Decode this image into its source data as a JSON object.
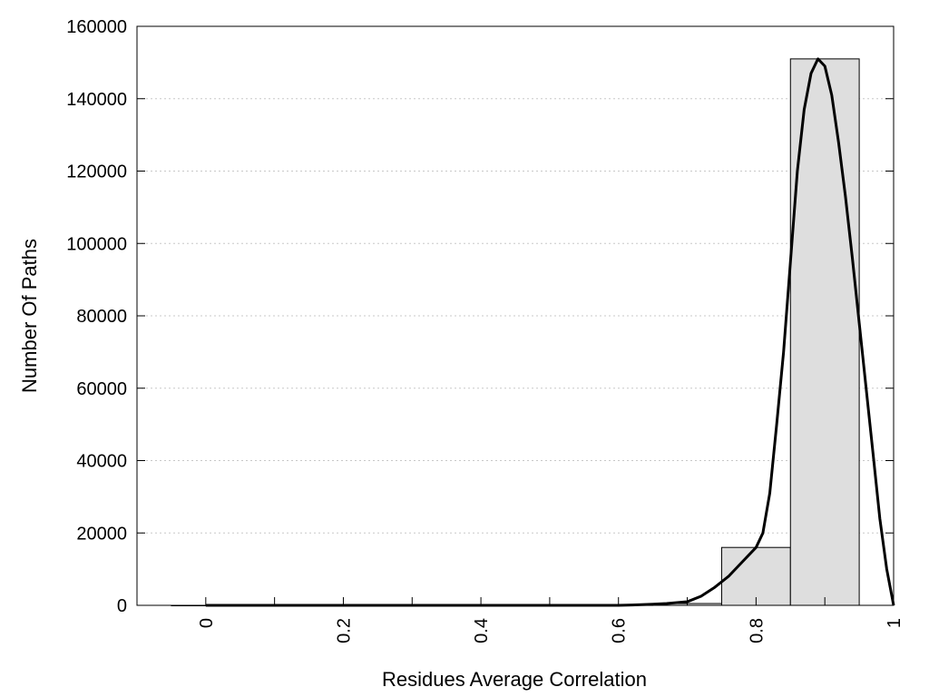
{
  "chart_data": {
    "type": "bar",
    "title": "",
    "xlabel": "Residues Average Correlation",
    "ylabel": "Number Of Paths",
    "xlim": [
      -0.1,
      1.0
    ],
    "ylim": [
      0,
      160000
    ],
    "x_ticks": [
      "0",
      "0.2",
      "0.4",
      "0.6",
      "0.8",
      "1"
    ],
    "x_tick_values": [
      0,
      0.2,
      0.4,
      0.6,
      0.8,
      1.0
    ],
    "x_minor_ticks": [
      0.1,
      0.3,
      0.5,
      0.7,
      0.9
    ],
    "y_ticks": [
      "0",
      "20000",
      "40000",
      "60000",
      "80000",
      "100000",
      "120000",
      "140000",
      "160000"
    ],
    "y_tick_values": [
      0,
      20000,
      40000,
      60000,
      80000,
      100000,
      120000,
      140000,
      160000
    ],
    "bin_width": 0.1,
    "bin_centers": [
      0,
      0.1,
      0.2,
      0.3,
      0.4,
      0.5,
      0.6,
      0.7,
      0.8,
      0.9
    ],
    "values": [
      0,
      0,
      0,
      0,
      0,
      0,
      100,
      500,
      16000,
      151000
    ],
    "fit_curve": {
      "x": [
        0.0,
        0.6,
        0.62,
        0.65,
        0.67,
        0.7,
        0.72,
        0.74,
        0.76,
        0.78,
        0.8,
        0.81,
        0.82,
        0.83,
        0.84,
        0.85,
        0.86,
        0.87,
        0.88,
        0.89,
        0.9,
        0.91,
        0.92,
        0.93,
        0.94,
        0.95,
        0.96,
        0.97,
        0.98,
        0.99,
        1.0
      ],
      "y": [
        0,
        0,
        100,
        300,
        500,
        1000,
        2500,
        5000,
        8000,
        12000,
        16000,
        20000,
        31000,
        50000,
        70000,
        95000,
        120000,
        137000,
        147000,
        151000,
        149000,
        141000,
        128000,
        113000,
        96000,
        78000,
        60000,
        42000,
        24000,
        10000,
        0
      ]
    },
    "grid": {
      "y": true,
      "x": false
    },
    "legend": "none",
    "colors": {
      "bar_fill": "#dedede",
      "bar_edge": "#000000",
      "curve": "#000000",
      "grid": "#c8c8c8"
    }
  }
}
